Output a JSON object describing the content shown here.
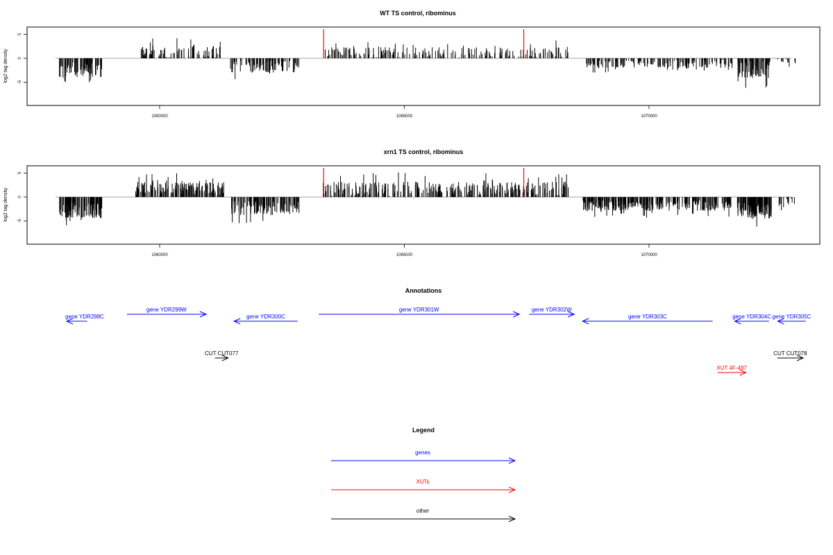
{
  "chart_data": {
    "type": "bar",
    "xlim": [
      1057800,
      1073200
    ],
    "ylim": [
      -9.5,
      6.5
    ],
    "xticks": [
      "1060000",
      "1065000",
      "1070000"
    ],
    "yticks": [
      "5",
      "0",
      "-5"
    ],
    "ylabel": "log2 tag density",
    "red_markers_x": [
      1063350,
      1067440
    ],
    "panels": [
      {
        "title": "WT TS control, ribominus",
        "segments": [
          {
            "x0": 1057950,
            "x1": 1058820,
            "count": 70,
            "base": -2.4,
            "amp": 1.6,
            "min": -5.0,
            "seed": 11
          },
          {
            "x0": 1059600,
            "x1": 1061240,
            "count": 95,
            "base": 1.2,
            "amp": 1.3,
            "min": 0,
            "max": 4.2,
            "seed": 23
          },
          {
            "x0": 1061420,
            "x1": 1062850,
            "count": 85,
            "base": -1.7,
            "amp": 1.3,
            "min": -7.2,
            "seed": 37
          },
          {
            "x0": 1063350,
            "x1": 1068350,
            "count": 210,
            "base": 1.1,
            "amp": 1.2,
            "min": -2.0,
            "max": 5.6,
            "seed": 41
          },
          {
            "x0": 1068700,
            "x1": 1071700,
            "count": 180,
            "base": -1.2,
            "amp": 0.9,
            "min": -5.0,
            "seed": 53
          },
          {
            "x0": 1071800,
            "x1": 1072500,
            "count": 70,
            "base": -2.3,
            "amp": 1.8,
            "min": -6.2,
            "seed": 67
          },
          {
            "x0": 1072600,
            "x1": 1073000,
            "count": 10,
            "base": -1.0,
            "amp": 0.8,
            "min": -2.2,
            "seed": 71
          }
        ]
      },
      {
        "title": "xrn1 TS control, ribominus",
        "segments": [
          {
            "x0": 1057950,
            "x1": 1058820,
            "count": 110,
            "base": -2.8,
            "amp": 1.6,
            "min": -6.5,
            "seed": 13
          },
          {
            "x0": 1059500,
            "x1": 1061350,
            "count": 160,
            "base": 1.8,
            "amp": 1.4,
            "min": 0,
            "max": 5.0,
            "seed": 29
          },
          {
            "x0": 1061420,
            "x1": 1062850,
            "count": 120,
            "base": -2.3,
            "amp": 1.5,
            "min": -8.9,
            "seed": 31
          },
          {
            "x0": 1063300,
            "x1": 1068350,
            "count": 330,
            "base": 1.7,
            "amp": 1.5,
            "min": -1.0,
            "max": 6.0,
            "seed": 43
          },
          {
            "x0": 1068650,
            "x1": 1071700,
            "count": 280,
            "base": -1.8,
            "amp": 1.1,
            "min": -6.8,
            "seed": 59
          },
          {
            "x0": 1071800,
            "x1": 1072500,
            "count": 110,
            "base": -2.8,
            "amp": 1.8,
            "min": -7.0,
            "seed": 61
          },
          {
            "x0": 1072600,
            "x1": 1073000,
            "count": 14,
            "base": -1.2,
            "amp": 1.0,
            "min": -4.0,
            "seed": 73
          }
        ]
      }
    ]
  },
  "annotations": {
    "title": "Annotations",
    "colors": {
      "gene": "#0000ff",
      "xut": "#ff0000",
      "other": "#000000"
    },
    "features": [
      {
        "label": "gene YDR298C",
        "kind": "gene",
        "strand": "-",
        "start": 1057850,
        "end": 1058520,
        "row": 1
      },
      {
        "label": "gene YDR299W",
        "kind": "gene",
        "strand": "+",
        "start": 1059330,
        "end": 1060950,
        "row": 0
      },
      {
        "label": "gene YDR300C",
        "kind": "gene",
        "strand": "-",
        "start": 1061520,
        "end": 1062820,
        "row": 1
      },
      {
        "label": "gene YDR301W",
        "kind": "gene",
        "strand": "+",
        "start": 1063250,
        "end": 1067350,
        "row": 0
      },
      {
        "label": "gene YDR302W",
        "kind": "gene",
        "strand": "+",
        "start": 1067550,
        "end": 1068470,
        "row": 0
      },
      {
        "label": "gene YDR303C",
        "kind": "gene",
        "strand": "-",
        "start": 1068640,
        "end": 1071300,
        "row": 1
      },
      {
        "label": "gene YDR304C",
        "kind": "gene",
        "strand": "-",
        "start": 1071750,
        "end": 1072450,
        "row": 1
      },
      {
        "label": "gene YDR305C",
        "kind": "gene",
        "strand": "-",
        "start": 1072630,
        "end": 1073200,
        "row": 1
      },
      {
        "label": "CUT CUT077",
        "kind": "other",
        "strand": "+",
        "start": 1061130,
        "end": 1061400,
        "row": 2
      },
      {
        "label": "CUT CUT078",
        "kind": "other",
        "strand": "+",
        "start": 1072620,
        "end": 1073150,
        "row": 2
      },
      {
        "label": "XUT 4F-497",
        "kind": "xut",
        "strand": "+",
        "start": 1071400,
        "end": 1071980,
        "row": 3
      }
    ]
  },
  "legend": {
    "title": "Legend",
    "items": [
      {
        "label": "genes",
        "color": "#0000ff"
      },
      {
        "label": "XUTs",
        "color": "#ff0000"
      },
      {
        "label": "other",
        "color": "#000000"
      }
    ]
  }
}
